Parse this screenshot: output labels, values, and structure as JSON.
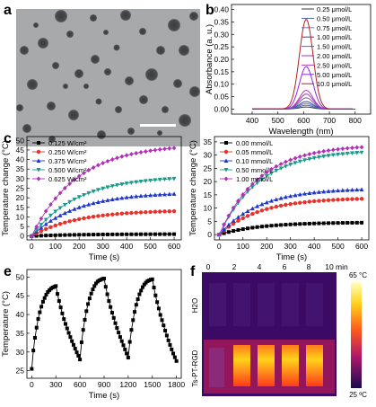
{
  "panels": {
    "a": {
      "label": "a"
    },
    "b": {
      "label": "b"
    },
    "c": {
      "label": "c"
    },
    "d": {
      "label": "d"
    },
    "e": {
      "label": "e"
    },
    "f": {
      "label": "f",
      "times": [
        "0",
        "2",
        "4",
        "6",
        "8",
        "10 min"
      ],
      "rows": [
        "H2O",
        "Ts-PT-RGD"
      ],
      "scale_max": "65 °C",
      "scale_min": "25 ºC"
    }
  },
  "chart_data": [
    {
      "panel": "b",
      "type": "line",
      "xlabel": "Wavelength (nm)",
      "ylabel": "Absorbance (a. u.)",
      "xlim": [
        320,
        860
      ],
      "ylim": [
        -0.02,
        0.42
      ],
      "xticks": [
        400,
        500,
        600,
        700,
        800
      ],
      "yticks": [
        0.0,
        0.05,
        0.1,
        0.15,
        0.2,
        0.25,
        0.3,
        0.35,
        0.4
      ],
      "ytick_labels": [
        "0.00",
        "0.05",
        "0.10",
        "0.15",
        "0.20",
        "0.25",
        "0.30",
        "0.35",
        "0.40"
      ],
      "legend_position": "top-right",
      "peak_nm": 610,
      "fwhm_nm": 62,
      "x_range": [
        400,
        800
      ],
      "series": [
        {
          "name": "0.25 μmol/L",
          "peak": 0.008,
          "color": "#3a3a3a"
        },
        {
          "name": "0.50 μmol/L",
          "peak": 0.015,
          "color": "#4d63a8"
        },
        {
          "name": "0.75 μmol/L",
          "peak": 0.022,
          "color": "#6a7cbf"
        },
        {
          "name": "1.00 μmol/L",
          "peak": 0.03,
          "color": "#3048a8"
        },
        {
          "name": "1.50 μmol/L",
          "peak": 0.045,
          "color": "#7a5ab0"
        },
        {
          "name": "2.00 μmol/L",
          "peak": 0.06,
          "color": "#9a3ab8"
        },
        {
          "name": "2.50 μmol/L",
          "peak": 0.075,
          "color": "#b040b0"
        },
        {
          "name": "5.00 μmol/L",
          "peak": 0.17,
          "color": "#8a2be2"
        },
        {
          "name": "10.0 μmol/L",
          "peak": 0.36,
          "color": "#b22222"
        }
      ]
    },
    {
      "panel": "c",
      "type": "line",
      "xlabel": "Time (s)",
      "ylabel": "Temperature change (°C)",
      "xlim": [
        -20,
        630
      ],
      "ylim": [
        -2,
        52
      ],
      "xticks": [
        0,
        100,
        200,
        300,
        400,
        500,
        600
      ],
      "yticks": [
        0,
        5,
        10,
        15,
        20,
        25,
        30,
        35,
        40,
        45,
        50
      ],
      "legend_position": "top-left",
      "step": 20,
      "time_const": 190,
      "series": [
        {
          "name": "0.125 W/cm²",
          "final": 1.0,
          "color": "#000000",
          "marker": "square"
        },
        {
          "name": "0.250 W/cm²",
          "final": 13.0,
          "color": "#e8322c",
          "marker": "circle"
        },
        {
          "name": "0.375 W/cm²",
          "final": 22.0,
          "color": "#2036c8",
          "marker": "triangle"
        },
        {
          "name": "0.500 W/cm²",
          "final": 30.0,
          "color": "#1a9a8a",
          "marker": "triangle-down"
        },
        {
          "name": "0.625 W/cm²",
          "final": 46.0,
          "color": "#b030b8",
          "marker": "diamond"
        }
      ]
    },
    {
      "panel": "d",
      "type": "line",
      "xlabel": "Time (s)",
      "ylabel": "Temperature change (°C)",
      "xlim": [
        -20,
        630
      ],
      "ylim": [
        -2,
        37
      ],
      "xticks": [
        0,
        100,
        200,
        300,
        400,
        500,
        600
      ],
      "yticks": [
        0,
        5,
        10,
        15,
        20,
        25,
        30,
        35
      ],
      "legend_position": "top-left",
      "step": 20,
      "time_const": 170,
      "series": [
        {
          "name": "0.00 mmol/L",
          "final": 4.5,
          "color": "#000000",
          "marker": "square"
        },
        {
          "name": "0.05 mmol/L",
          "final": 13.5,
          "color": "#e8322c",
          "marker": "circle"
        },
        {
          "name": "0.10 mmol/L",
          "final": 17.0,
          "color": "#2036c8",
          "marker": "triangle"
        },
        {
          "name": "0.50 mmol/L",
          "final": 31.0,
          "color": "#1a9a8a",
          "marker": "triangle-down"
        },
        {
          "name": "1.00 mmol/L",
          "final": 33.0,
          "color": "#b030b8",
          "marker": "diamond"
        }
      ]
    },
    {
      "panel": "e",
      "type": "line",
      "xlabel": "Time (s)",
      "ylabel": "Temperature (°C)",
      "xlim": [
        -60,
        1860
      ],
      "ylim": [
        23,
        52
      ],
      "xticks": [
        0,
        300,
        600,
        900,
        1200,
        1500,
        1800
      ],
      "yticks": [
        25,
        30,
        35,
        40,
        45,
        50
      ],
      "series": [
        {
          "name": "",
          "color": "#000000",
          "marker": "square",
          "x": [
            0,
            20,
            40,
            60,
            80,
            100,
            120,
            140,
            160,
            180,
            200,
            220,
            240,
            260,
            280,
            300,
            320,
            340,
            360,
            380,
            400,
            420,
            440,
            460,
            480,
            500,
            520,
            540,
            560,
            580,
            600,
            620,
            640,
            660,
            680,
            700,
            720,
            740,
            760,
            780,
            800,
            820,
            840,
            860,
            880,
            900,
            920,
            940,
            960,
            980,
            1000,
            1020,
            1040,
            1060,
            1080,
            1100,
            1120,
            1140,
            1160,
            1180,
            1200,
            1220,
            1240,
            1260,
            1280,
            1300,
            1320,
            1340,
            1360,
            1380,
            1400,
            1420,
            1440,
            1460,
            1480,
            1500,
            1520,
            1540,
            1560,
            1580,
            1600,
            1620,
            1640,
            1660,
            1680,
            1700,
            1720,
            1740,
            1760,
            1780,
            1800
          ],
          "y": [
            25.5,
            30.4,
            33.8,
            36.5,
            38.8,
            40.6,
            42.1,
            43.4,
            44.4,
            45.3,
            46.0,
            46.5,
            46.9,
            47.2,
            47.4,
            47.6,
            45.5,
            43.6,
            41.9,
            40.3,
            38.8,
            37.5,
            36.3,
            35.1,
            34.0,
            32.9,
            31.9,
            30.9,
            29.9,
            29.0,
            28.0,
            32.6,
            35.9,
            38.6,
            40.9,
            42.8,
            44.3,
            45.6,
            46.7,
            47.6,
            48.3,
            48.8,
            49.1,
            49.3,
            49.5,
            49.6,
            47.4,
            45.4,
            43.6,
            42.0,
            40.5,
            39.1,
            37.7,
            36.4,
            35.2,
            34.0,
            32.9,
            31.8,
            30.7,
            29.6,
            28.5,
            32.7,
            35.9,
            38.5,
            40.7,
            42.6,
            44.1,
            45.4,
            46.4,
            47.3,
            48.0,
            48.5,
            48.9,
            49.1,
            49.3,
            49.4,
            47.2,
            45.1,
            43.3,
            41.6,
            39.9,
            38.5,
            37.1,
            35.7,
            34.4,
            33.1,
            31.9,
            30.7,
            29.6,
            28.6,
            27.6
          ]
        }
      ]
    }
  ]
}
